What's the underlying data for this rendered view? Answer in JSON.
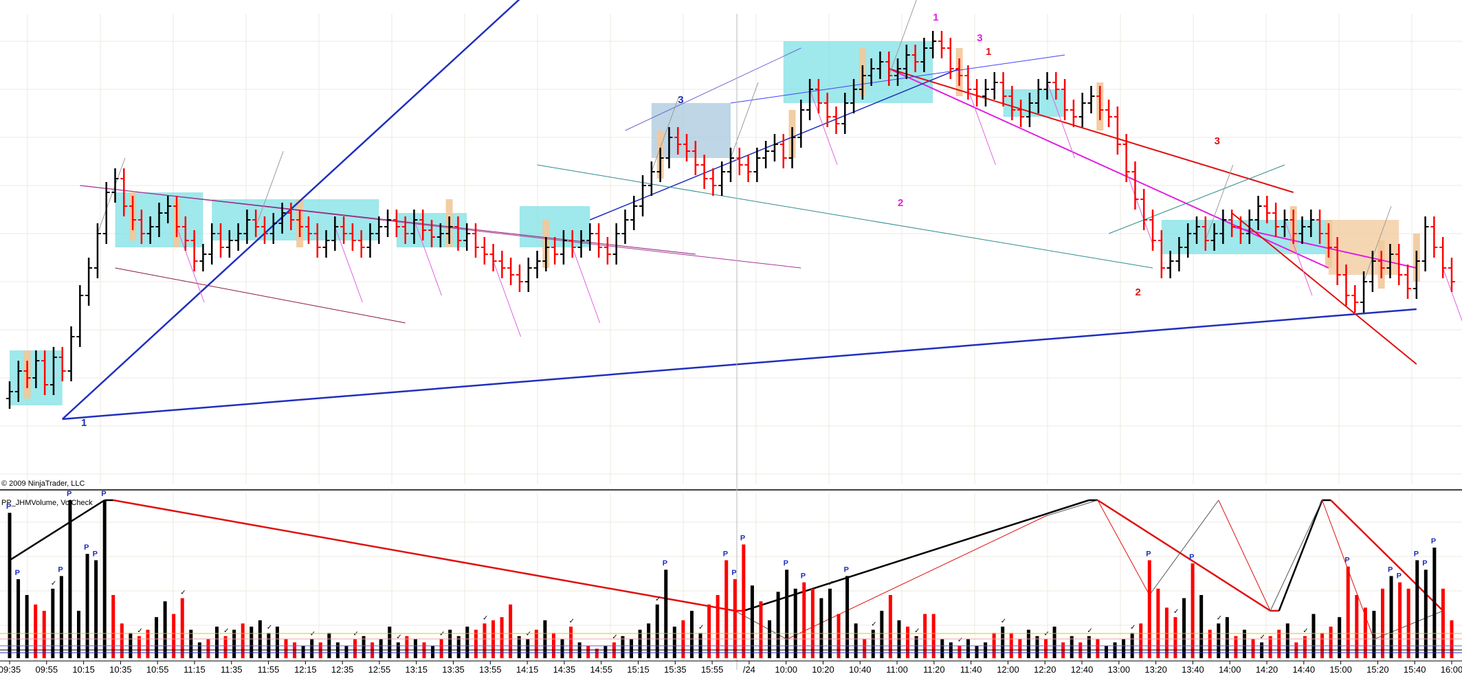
{
  "chart_data": {
    "type": "bar",
    "copyright": "© 2009 NinjaTrader, LLC",
    "indicator_label": "PP_JHMVolume, VolCheck",
    "x_ticks": [
      "09:35",
      "09:55",
      "10:15",
      "10:35",
      "10:55",
      "11:15",
      "11:35",
      "11:55",
      "12:15",
      "12:35",
      "12:55",
      "13:15",
      "13:35",
      "13:55",
      "14:15",
      "14:35",
      "14:55",
      "15:15",
      "15:35",
      "15:55",
      "/24",
      "10:00",
      "10:20",
      "10:40",
      "11:00",
      "11:20",
      "11:40",
      "12:00",
      "12:20",
      "12:40",
      "13:00",
      "13:20",
      "13:40",
      "14:00",
      "14:20",
      "14:40",
      "15:00",
      "15:20",
      "15:40",
      "16:00"
    ],
    "wave_labels": [
      {
        "text": "1",
        "color": "#1f2fbf",
        "bar": "start"
      },
      {
        "text": "2",
        "color": "#1f2fbf",
        "bar": "high-1"
      },
      {
        "text": "3",
        "color": "#1f2fbf",
        "bar": "swing-low"
      },
      {
        "text": "1",
        "color": "#e020e0",
        "bar": "top"
      },
      {
        "text": "2",
        "color": "#e020e0",
        "bar": "pullback"
      },
      {
        "text": "3",
        "color": "#e020e0",
        "bar": "lower-high"
      },
      {
        "text": "1",
        "color": "#e01010",
        "bar": "lower-high"
      },
      {
        "text": "2",
        "color": "#e01010",
        "bar": "low-2"
      },
      {
        "text": "3",
        "color": "#e01010",
        "bar": "late"
      }
    ],
    "price_closes": [
      24,
      30,
      28,
      33,
      26,
      34,
      30,
      40,
      52,
      60,
      70,
      82,
      86,
      78,
      74,
      70,
      72,
      76,
      78,
      72,
      68,
      62,
      64,
      70,
      66,
      68,
      70,
      74,
      72,
      70,
      73,
      76,
      74,
      72,
      70,
      66,
      68,
      72,
      70,
      68,
      66,
      70,
      72,
      74,
      72,
      70,
      74,
      71,
      69,
      70,
      72,
      68,
      70,
      66,
      64,
      62,
      60,
      58,
      56,
      60,
      62,
      66,
      64,
      68,
      66,
      68,
      70,
      66,
      64,
      70,
      74,
      78,
      84,
      88,
      92,
      98,
      96,
      94,
      90,
      86,
      84,
      88,
      92,
      90,
      88,
      92,
      94,
      96,
      92,
      98,
      106,
      112,
      108,
      104,
      102,
      108,
      112,
      116,
      118,
      120,
      116,
      118,
      122,
      120,
      124,
      126,
      124,
      118,
      116,
      112,
      110,
      112,
      114,
      110,
      106,
      104,
      108,
      112,
      114,
      112,
      106,
      104,
      108,
      110,
      106,
      104,
      96,
      88,
      80,
      74,
      68,
      60,
      62,
      66,
      70,
      72,
      68,
      70,
      74,
      72,
      70,
      74,
      78,
      76,
      72,
      74,
      70,
      72,
      74,
      70,
      66,
      58,
      52,
      50,
      56,
      62,
      60,
      64,
      58,
      54,
      62,
      72,
      66,
      60,
      56
    ],
    "volume": [
      {
        "v": 92,
        "c": "b"
      },
      {
        "v": 50,
        "c": "b"
      },
      {
        "v": 40,
        "c": "b"
      },
      {
        "v": 34,
        "c": "r"
      },
      {
        "v": 30,
        "c": "r"
      },
      {
        "v": 44,
        "c": "b"
      },
      {
        "v": 52,
        "c": "b"
      },
      {
        "v": 100,
        "c": "b"
      },
      {
        "v": 30,
        "c": "b"
      },
      {
        "v": 66,
        "c": "b"
      },
      {
        "v": 62,
        "c": "b"
      },
      {
        "v": 100,
        "c": "b"
      },
      {
        "v": 40,
        "c": "r"
      },
      {
        "v": 22,
        "c": "r"
      },
      {
        "v": 16,
        "c": "b"
      },
      {
        "v": 14,
        "c": "r"
      },
      {
        "v": 18,
        "c": "r"
      },
      {
        "v": 26,
        "c": "b"
      },
      {
        "v": 36,
        "c": "b"
      },
      {
        "v": 28,
        "c": "r"
      },
      {
        "v": 38,
        "c": "r"
      },
      {
        "v": 18,
        "c": "b"
      },
      {
        "v": 10,
        "c": "b"
      },
      {
        "v": 12,
        "c": "r"
      },
      {
        "v": 20,
        "c": "b"
      },
      {
        "v": 14,
        "c": "r"
      },
      {
        "v": 18,
        "c": "b"
      },
      {
        "v": 22,
        "c": "r"
      },
      {
        "v": 20,
        "c": "b"
      },
      {
        "v": 24,
        "c": "b"
      },
      {
        "v": 16,
        "c": "b"
      },
      {
        "v": 20,
        "c": "b"
      },
      {
        "v": 12,
        "c": "r"
      },
      {
        "v": 10,
        "c": "r"
      },
      {
        "v": 8,
        "c": "b"
      },
      {
        "v": 12,
        "c": "b"
      },
      {
        "v": 10,
        "c": "r"
      },
      {
        "v": 16,
        "c": "b"
      },
      {
        "v": 10,
        "c": "b"
      },
      {
        "v": 8,
        "c": "b"
      },
      {
        "v": 12,
        "c": "r"
      },
      {
        "v": 14,
        "c": "b"
      },
      {
        "v": 10,
        "c": "r"
      },
      {
        "v": 12,
        "c": "b"
      },
      {
        "v": 20,
        "c": "b"
      },
      {
        "v": 10,
        "c": "b"
      },
      {
        "v": 14,
        "c": "r"
      },
      {
        "v": 12,
        "c": "b"
      },
      {
        "v": 10,
        "c": "r"
      },
      {
        "v": 8,
        "c": "b"
      },
      {
        "v": 12,
        "c": "r"
      },
      {
        "v": 18,
        "c": "b"
      },
      {
        "v": 14,
        "c": "b"
      },
      {
        "v": 20,
        "c": "b"
      },
      {
        "v": 18,
        "c": "r"
      },
      {
        "v": 22,
        "c": "r"
      },
      {
        "v": 24,
        "c": "r"
      },
      {
        "v": 26,
        "c": "r"
      },
      {
        "v": 34,
        "c": "r"
      },
      {
        "v": 14,
        "c": "b"
      },
      {
        "v": 12,
        "c": "b"
      },
      {
        "v": 18,
        "c": "r"
      },
      {
        "v": 24,
        "c": "b"
      },
      {
        "v": 16,
        "c": "r"
      },
      {
        "v": 12,
        "c": "b"
      },
      {
        "v": 20,
        "c": "r"
      },
      {
        "v": 10,
        "c": "b"
      },
      {
        "v": 8,
        "c": "r"
      },
      {
        "v": 6,
        "c": "r"
      },
      {
        "v": 8,
        "c": "b"
      },
      {
        "v": 10,
        "c": "r"
      },
      {
        "v": 14,
        "c": "b"
      },
      {
        "v": 12,
        "c": "b"
      },
      {
        "v": 18,
        "c": "b"
      },
      {
        "v": 22,
        "c": "b"
      },
      {
        "v": 34,
        "c": "b"
      },
      {
        "v": 56,
        "c": "b"
      },
      {
        "v": 20,
        "c": "b"
      },
      {
        "v": 24,
        "c": "r"
      },
      {
        "v": 30,
        "c": "b"
      },
      {
        "v": 16,
        "c": "b"
      },
      {
        "v": 34,
        "c": "r"
      },
      {
        "v": 40,
        "c": "r"
      },
      {
        "v": 62,
        "c": "r"
      },
      {
        "v": 50,
        "c": "r"
      },
      {
        "v": 72,
        "c": "r"
      },
      {
        "v": 46,
        "c": "b"
      },
      {
        "v": 36,
        "c": "r"
      },
      {
        "v": 24,
        "c": "b"
      },
      {
        "v": 42,
        "c": "b"
      },
      {
        "v": 56,
        "c": "b"
      },
      {
        "v": 44,
        "c": "b"
      },
      {
        "v": 48,
        "c": "r"
      },
      {
        "v": 44,
        "c": "r"
      },
      {
        "v": 38,
        "c": "b"
      },
      {
        "v": 44,
        "c": "b"
      },
      {
        "v": 28,
        "c": "r"
      },
      {
        "v": 52,
        "c": "b"
      },
      {
        "v": 22,
        "c": "b"
      },
      {
        "v": 12,
        "c": "r"
      },
      {
        "v": 18,
        "c": "b"
      },
      {
        "v": 30,
        "c": "b"
      },
      {
        "v": 40,
        "c": "r"
      },
      {
        "v": 24,
        "c": "b"
      },
      {
        "v": 20,
        "c": "r"
      },
      {
        "v": 14,
        "c": "b"
      },
      {
        "v": 28,
        "c": "r"
      },
      {
        "v": 28,
        "c": "r"
      },
      {
        "v": 12,
        "c": "b"
      },
      {
        "v": 10,
        "c": "b"
      },
      {
        "v": 8,
        "c": "r"
      },
      {
        "v": 12,
        "c": "b"
      },
      {
        "v": 8,
        "c": "b"
      },
      {
        "v": 10,
        "c": "b"
      },
      {
        "v": 16,
        "c": "r"
      },
      {
        "v": 20,
        "c": "b"
      },
      {
        "v": 16,
        "c": "r"
      },
      {
        "v": 12,
        "c": "r"
      },
      {
        "v": 18,
        "c": "b"
      },
      {
        "v": 14,
        "c": "b"
      },
      {
        "v": 12,
        "c": "r"
      },
      {
        "v": 20,
        "c": "b"
      },
      {
        "v": 10,
        "c": "r"
      },
      {
        "v": 14,
        "c": "b"
      },
      {
        "v": 10,
        "c": "r"
      },
      {
        "v": 14,
        "c": "b"
      },
      {
        "v": 12,
        "c": "r"
      },
      {
        "v": 8,
        "c": "b"
      },
      {
        "v": 10,
        "c": "b"
      },
      {
        "v": 12,
        "c": "b"
      },
      {
        "v": 16,
        "c": "b"
      },
      {
        "v": 22,
        "c": "r"
      },
      {
        "v": 62,
        "c": "r"
      },
      {
        "v": 44,
        "c": "r"
      },
      {
        "v": 32,
        "c": "r"
      },
      {
        "v": 26,
        "c": "r"
      },
      {
        "v": 38,
        "c": "b"
      },
      {
        "v": 60,
        "c": "r"
      },
      {
        "v": 40,
        "c": "b"
      },
      {
        "v": 18,
        "c": "r"
      },
      {
        "v": 22,
        "c": "b"
      },
      {
        "v": 26,
        "c": "b"
      },
      {
        "v": 14,
        "c": "r"
      },
      {
        "v": 18,
        "c": "b"
      },
      {
        "v": 12,
        "c": "r"
      },
      {
        "v": 10,
        "c": "b"
      },
      {
        "v": 14,
        "c": "r"
      },
      {
        "v": 18,
        "c": "r"
      },
      {
        "v": 22,
        "c": "b"
      },
      {
        "v": 10,
        "c": "r"
      },
      {
        "v": 14,
        "c": "r"
      },
      {
        "v": 28,
        "c": "b"
      },
      {
        "v": 16,
        "c": "r"
      },
      {
        "v": 20,
        "c": "r"
      },
      {
        "v": 26,
        "c": "b"
      },
      {
        "v": 58,
        "c": "r"
      },
      {
        "v": 40,
        "c": "r"
      },
      {
        "v": 32,
        "c": "r"
      },
      {
        "v": 30,
        "c": "b"
      },
      {
        "v": 44,
        "c": "r"
      },
      {
        "v": 52,
        "c": "b"
      },
      {
        "v": 48,
        "c": "r"
      },
      {
        "v": 44,
        "c": "r"
      },
      {
        "v": 62,
        "c": "b"
      },
      {
        "v": 56,
        "c": "b"
      },
      {
        "v": 70,
        "c": "b"
      },
      {
        "v": 44,
        "c": "r"
      },
      {
        "v": 24,
        "c": "r"
      }
    ],
    "volume_markers": {
      "pivot_letter": "P",
      "check_glyph": "✓"
    },
    "colors": {
      "up": "#000000",
      "down": "#ff0000",
      "box": "#7fe0e4",
      "tan": "#f2c89a",
      "blue_line": "#1f2fbf",
      "magenta": "#e020e0",
      "red_line": "#e01010"
    }
  }
}
